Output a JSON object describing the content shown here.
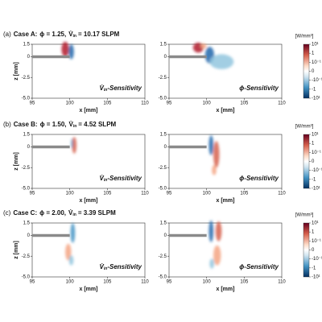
{
  "figure": {
    "axes": {
      "xlabel": "x [mm]",
      "ylabel": "z [mm]",
      "xlim": [
        95,
        110
      ],
      "ylim": [
        -5,
        1.5
      ],
      "xticks": [
        95,
        100,
        105,
        110
      ],
      "yticks": [
        1.5,
        0,
        -2.5,
        {
          "value": -5,
          "label": "-5.0"
        }
      ]
    },
    "colorbar": {
      "unit": "[W/mm³]",
      "ticks": [
        {
          "value": 10,
          "label": "10¹"
        },
        1,
        {
          "value": 0.1,
          "label": "10⁻¹"
        },
        0,
        {
          "value": -0.1,
          "label": "-10⁻¹"
        },
        -1,
        {
          "value": -10,
          "label": "-10¹"
        }
      ]
    },
    "panels": [
      {
        "label": "(a)",
        "case": "Case A:",
        "phi": "ϕ = 1.25,",
        "vdot": "V̇",
        "sub": "in",
        "value": "= 10.17 SLPM",
        "subplots": [
          {
            "symbol": "V̇",
            "sub": "in",
            "text": "-Sensitivity"
          },
          {
            "text": "ϕ-Sensitivity"
          }
        ]
      },
      {
        "label": "(b)",
        "case": "Case B:",
        "phi": "ϕ = 1.50,",
        "vdot": "V̇",
        "sub": "in",
        "value": "= 4.52 SLPM",
        "subplots": [
          {
            "symbol": "V̇",
            "sub": "in",
            "text": "-Sensitivity"
          },
          {
            "text": "ϕ-Sensitivity"
          }
        ]
      },
      {
        "label": "(c)",
        "case": "Case C:",
        "phi": "ϕ = 2.00,",
        "vdot": "V̇",
        "sub": "in",
        "value": "= 3.39 SLPM",
        "subplots": [
          {
            "symbol": "V̇",
            "sub": "in",
            "text": "-Sensitivity"
          },
          {
            "text": "ϕ-Sensitivity"
          }
        ]
      }
    ]
  }
}
